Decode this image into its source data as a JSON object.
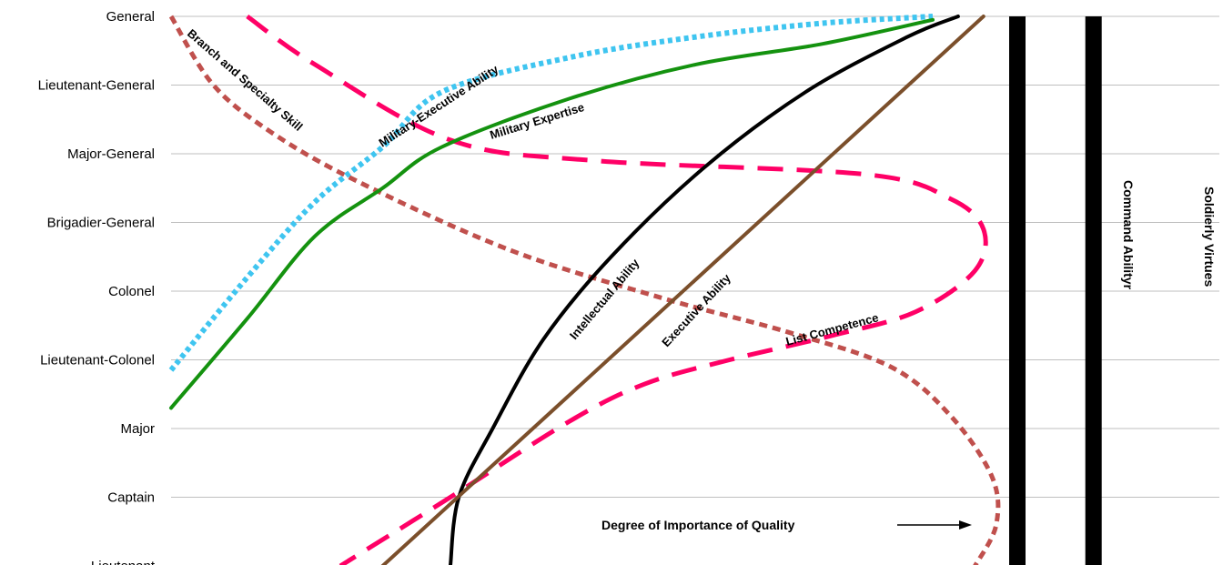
{
  "chart_data": {
    "type": "line",
    "xlabel": "Degree of Importance of Quality",
    "categories": [
      "Lieutenant",
      "Captain",
      "Major",
      "Lieutenant-Colonel",
      "Colonel",
      "Brigadier-General",
      "Major-General",
      "Lieutenant-General",
      "General"
    ],
    "series": [
      {
        "name": "Branch and Specialty Skill",
        "color": "#C0504D",
        "style": "short-dash",
        "points": [
          [
            0.0,
            8
          ],
          [
            0.05,
            7
          ],
          [
            0.12,
            6.3
          ],
          [
            0.22,
            5.6
          ],
          [
            0.4,
            4.6
          ],
          [
            0.58,
            3.9
          ],
          [
            0.73,
            3.4
          ],
          [
            0.85,
            2.9
          ],
          [
            0.92,
            2.2
          ],
          [
            0.97,
            1.3
          ],
          [
            0.975,
            0.6
          ],
          [
            0.95,
            0
          ]
        ]
      },
      {
        "name": "List Competence",
        "color": "#FF0066",
        "style": "long-dash",
        "points": [
          [
            0.09,
            8
          ],
          [
            0.17,
            7.3
          ],
          [
            0.33,
            6.2
          ],
          [
            0.5,
            5.9
          ],
          [
            0.82,
            5.7
          ],
          [
            0.92,
            5.35
          ],
          [
            0.96,
            4.9
          ],
          [
            0.95,
            4.3
          ],
          [
            0.88,
            3.7
          ],
          [
            0.78,
            3.35
          ],
          [
            0.66,
            3.0
          ],
          [
            0.56,
            2.65
          ],
          [
            0.47,
            2.1
          ],
          [
            0.33,
            1.0
          ],
          [
            0.2,
            0
          ]
        ]
      },
      {
        "name": "Military-Executive Ability",
        "color": "#3FC5F0",
        "style": "dotted",
        "points": [
          [
            0.0,
            2.85
          ],
          [
            0.09,
            4.2
          ],
          [
            0.17,
            5.3
          ],
          [
            0.25,
            6.1
          ],
          [
            0.32,
            6.9
          ],
          [
            0.47,
            7.4
          ],
          [
            0.62,
            7.7
          ],
          [
            0.77,
            7.9
          ],
          [
            0.9,
            8
          ]
        ]
      },
      {
        "name": "Military Expertise",
        "color": "#14920F",
        "style": "solid",
        "points": [
          [
            0.0,
            2.3
          ],
          [
            0.09,
            3.6
          ],
          [
            0.17,
            4.8
          ],
          [
            0.25,
            5.5
          ],
          [
            0.32,
            6.1
          ],
          [
            0.47,
            6.8
          ],
          [
            0.62,
            7.3
          ],
          [
            0.77,
            7.6
          ],
          [
            0.9,
            7.95
          ]
        ]
      },
      {
        "name": "Intellectual Ability",
        "color": "#000000",
        "style": "solid",
        "points": [
          [
            0.33,
            0
          ],
          [
            0.34,
            1.0
          ],
          [
            0.38,
            2.0
          ],
          [
            0.44,
            3.3
          ],
          [
            0.52,
            4.5
          ],
          [
            0.63,
            5.8
          ],
          [
            0.75,
            6.9
          ],
          [
            0.87,
            7.7
          ],
          [
            0.93,
            8
          ]
        ]
      },
      {
        "name": "Executive Ability",
        "color": "#7B4F2B",
        "style": "solid",
        "points": [
          [
            0.25,
            0
          ],
          [
            0.96,
            8
          ]
        ]
      },
      {
        "name": "Command Abilityr",
        "color": "#000000",
        "style": "bar",
        "points": [
          [
            1.0,
            0
          ],
          [
            1.0,
            8
          ]
        ]
      },
      {
        "name": "Soldierly Virtues",
        "color": "#000000",
        "style": "bar",
        "points": [
          [
            1.09,
            0
          ],
          [
            1.09,
            8
          ]
        ]
      }
    ]
  }
}
